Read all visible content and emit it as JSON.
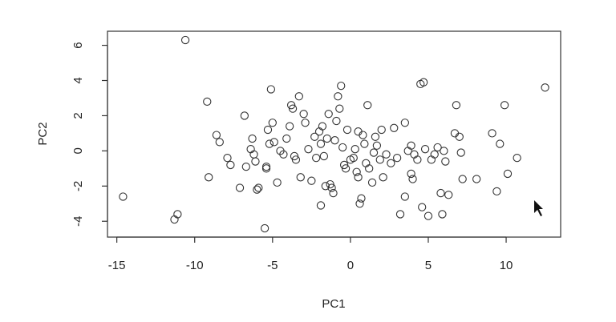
{
  "chart_data": {
    "type": "scatter",
    "x_label": "PC1",
    "y_label": "PC2",
    "xlim": [
      -15.6,
      13.5
    ],
    "ylim": [
      -4.9,
      6.8
    ],
    "xticks": [
      -15,
      -10,
      -5,
      0,
      5,
      10
    ],
    "yticks": [
      -4,
      -2,
      0,
      2,
      4,
      6
    ],
    "color": "#333333",
    "x": [
      -14.6,
      -10.6,
      -11.1,
      -11.3,
      -9.2,
      -9.1,
      -8.6,
      -8.4,
      -7.9,
      -7.7,
      -7.1,
      -6.8,
      -6.7,
      -6.4,
      -6.3,
      -6.2,
      -6.0,
      -5.9,
      -6.1,
      -5.5,
      -5.3,
      -5.2,
      -5.1,
      -5.0,
      -4.9,
      -5.4,
      -5.4,
      -4.7,
      -4.5,
      -4.3,
      -4.1,
      -3.9,
      -3.8,
      -3.7,
      -3.6,
      -3.5,
      -3.3,
      -3.2,
      -3.0,
      -2.9,
      -2.7,
      -2.5,
      -2.2,
      -2.0,
      -1.9,
      -1.8,
      -1.7,
      -1.6,
      -1.5,
      -1.4,
      -1.3,
      -1.2,
      -1.1,
      -1.0,
      -0.9,
      -0.8,
      -0.7,
      -0.6,
      -0.5,
      -0.4,
      -0.3,
      -0.2,
      0.0,
      0.2,
      0.3,
      0.4,
      0.5,
      0.6,
      0.7,
      0.8,
      0.9,
      1.0,
      1.1,
      1.2,
      1.4,
      1.5,
      1.6,
      1.7,
      1.9,
      2.0,
      2.1,
      2.3,
      2.6,
      2.8,
      3.0,
      3.2,
      3.5,
      3.5,
      3.7,
      3.9,
      4.0,
      4.1,
      4.3,
      4.5,
      4.7,
      4.6,
      4.8,
      5.0,
      5.2,
      5.6,
      5.8,
      5.9,
      6.1,
      6.3,
      6.7,
      6.8,
      7.0,
      7.1,
      7.2,
      8.1,
      9.1,
      9.4,
      9.6,
      9.9,
      10.1,
      10.7,
      12.5,
      -2.3,
      -1.9,
      0.5,
      6.0,
      5.4,
      3.9
    ],
    "y": [
      -2.6,
      6.3,
      -3.6,
      -3.9,
      2.8,
      -1.5,
      0.9,
      0.5,
      -0.4,
      -0.8,
      -2.1,
      2.0,
      -0.9,
      0.1,
      0.7,
      -0.2,
      -2.2,
      -2.1,
      -0.6,
      -4.4,
      1.2,
      0.4,
      3.5,
      1.6,
      0.5,
      -1.0,
      -0.9,
      -1.8,
      0.0,
      -0.2,
      0.7,
      1.4,
      2.6,
      2.4,
      -0.3,
      -0.5,
      3.1,
      -1.5,
      2.1,
      1.6,
      0.1,
      -1.7,
      -0.4,
      1.1,
      -3.1,
      1.4,
      -0.3,
      -2.0,
      0.7,
      2.1,
      -1.9,
      -2.1,
      -2.4,
      0.6,
      1.7,
      3.1,
      2.4,
      3.7,
      0.2,
      -0.8,
      -1.0,
      1.2,
      -0.5,
      -0.4,
      0.1,
      -1.2,
      -1.5,
      -3.0,
      -2.7,
      0.9,
      0.4,
      -0.7,
      2.6,
      -1.0,
      -1.8,
      -0.1,
      0.8,
      0.3,
      -0.5,
      1.2,
      -1.5,
      -0.2,
      -0.7,
      1.3,
      -0.4,
      -3.6,
      1.6,
      -2.6,
      0.0,
      0.3,
      -1.6,
      -0.2,
      -0.5,
      3.8,
      3.9,
      -3.2,
      0.1,
      -3.7,
      -0.5,
      0.2,
      -2.4,
      -3.6,
      -0.6,
      -2.5,
      1.0,
      2.6,
      0.8,
      -0.1,
      -1.6,
      -1.6,
      1.0,
      -2.3,
      0.4,
      2.6,
      -1.3,
      -0.4,
      3.6,
      0.8,
      0.4,
      1.1,
      0.0,
      -0.2,
      -1.3
    ]
  }
}
